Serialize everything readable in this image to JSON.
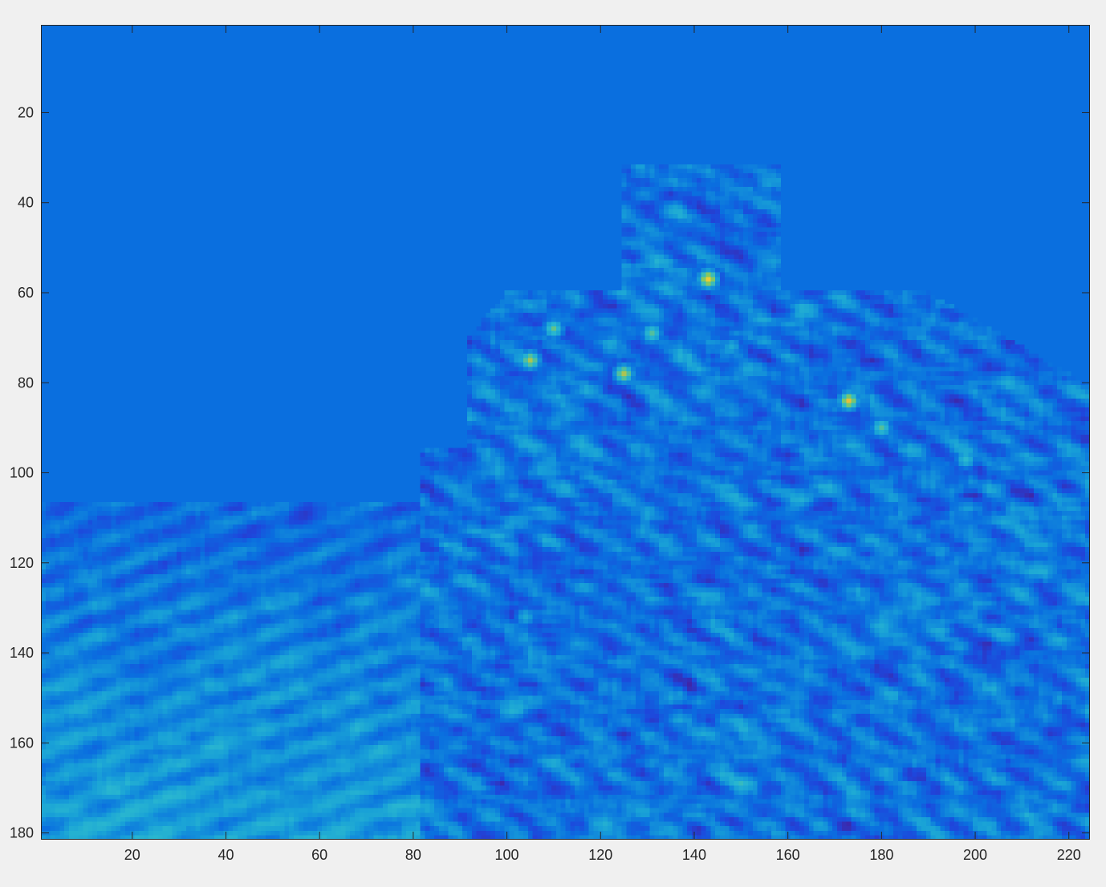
{
  "chart_data": {
    "type": "heatmap",
    "title": "",
    "xlabel": "",
    "ylabel": "",
    "colormap": "parula",
    "xlim": [
      0.5,
      224.5
    ],
    "ylim": [
      0.5,
      181.5
    ],
    "y_direction": "reverse",
    "grid": false,
    "legend": "none",
    "colors": {
      "background": "#0a6fdf",
      "low": "#3e26a8",
      "mid": "#2ab8cf",
      "high": "#f9d230",
      "figure_bg": "#f0f0f0"
    },
    "xticks": [
      20,
      40,
      60,
      80,
      100,
      120,
      140,
      160,
      180,
      200,
      220
    ],
    "xtick_labels": [
      "20",
      "40",
      "60",
      "80",
      "100",
      "120",
      "140",
      "160",
      "180",
      "200",
      "220"
    ],
    "yticks": [
      20,
      40,
      60,
      80,
      100,
      120,
      140,
      160,
      180
    ],
    "ytick_labels": [
      "20",
      "40",
      "60",
      "80",
      "100",
      "120",
      "140",
      "160",
      "180"
    ],
    "regions": [
      {
        "name": "lower-left-band",
        "x": [
          1,
          92
        ],
        "y": [
          107,
          181
        ],
        "level": 0.35
      },
      {
        "name": "central-structure",
        "x": [
          82,
          224
        ],
        "y": [
          60,
          181
        ],
        "level": 0.25
      },
      {
        "name": "upper-structure",
        "x": [
          125,
          158
        ],
        "y": [
          30,
          60
        ],
        "level": 0.25
      }
    ],
    "hot_spots": [
      {
        "x": 143,
        "y": 57,
        "value": 0.95
      },
      {
        "x": 173,
        "y": 84,
        "value": 0.92
      },
      {
        "x": 105,
        "y": 75,
        "value": 0.85
      },
      {
        "x": 125,
        "y": 78,
        "value": 0.85
      },
      {
        "x": 110,
        "y": 68,
        "value": 0.75
      },
      {
        "x": 131,
        "y": 69,
        "value": 0.72
      },
      {
        "x": 180,
        "y": 90,
        "value": 0.72
      },
      {
        "x": 198,
        "y": 97,
        "value": 0.65
      },
      {
        "x": 148,
        "y": 72,
        "value": 0.55
      },
      {
        "x": 104,
        "y": 132,
        "value": 0.55
      }
    ]
  }
}
